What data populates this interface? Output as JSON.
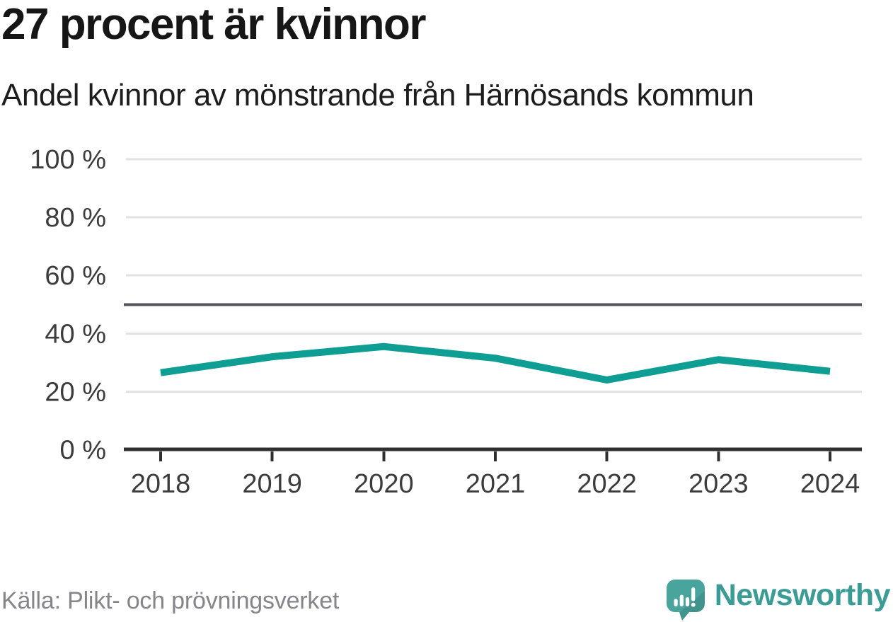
{
  "header": {
    "headline": "27 procent är kvinnor",
    "subtitle": "Andel kvinnor av mönstrande från Härnösands kommun"
  },
  "footer": {
    "source": "Källa: Plikt- och prövningsverket",
    "brand": "Newsworthy"
  },
  "colors": {
    "line": "#0f9e93",
    "grid": "#e2e2e2",
    "reference_line": "#53535a",
    "axis": "#2f2f2f",
    "text_dark": "#3c3c3c",
    "text_gray": "#85858b",
    "logo_teal": "#4aa49e",
    "wordmark_teal": "#3b9c96"
  },
  "chart_data": {
    "type": "line",
    "title": "27 procent är kvinnor",
    "subtitle": "Andel kvinnor av mönstrande från Härnösands kommun",
    "categories": [
      "2018",
      "2019",
      "2020",
      "2021",
      "2022",
      "2023",
      "2024"
    ],
    "series": [
      {
        "name": "Andel kvinnor av mönstrande, Härnösands kommun",
        "values": [
          26.5,
          32,
          35.5,
          31.5,
          24,
          31,
          27
        ]
      }
    ],
    "unit": "%",
    "xlabel": "",
    "ylabel": "",
    "ylim": [
      0,
      100
    ],
    "grid": true,
    "legend": "none",
    "y_ticks": [
      {
        "value": 100,
        "label": "100 %"
      },
      {
        "value": 80,
        "label": "80 %"
      },
      {
        "value": 60,
        "label": "60 %"
      },
      {
        "value": 40,
        "label": "40 %"
      },
      {
        "value": 20,
        "label": "20 %"
      },
      {
        "value": 0,
        "label": "0 %"
      }
    ],
    "reference_line": {
      "value": 50
    },
    "line_color": "#0f9e93"
  }
}
